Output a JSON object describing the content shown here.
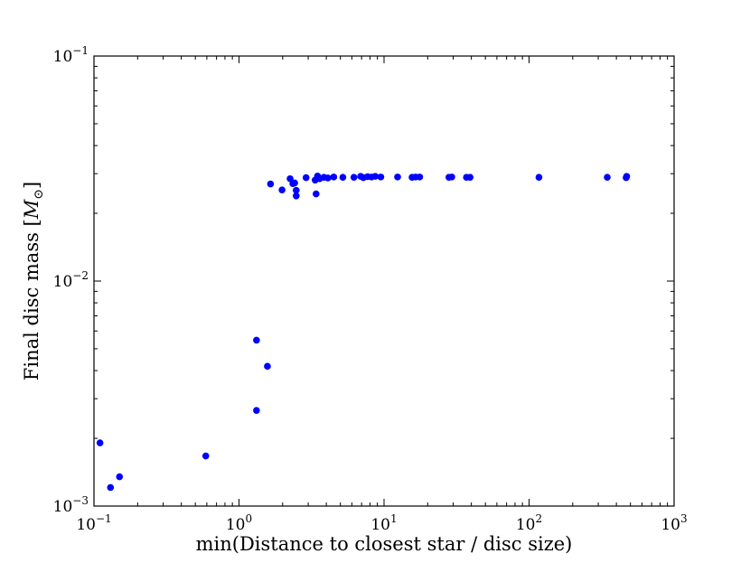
{
  "chart_data": {
    "type": "scatter",
    "title": "",
    "xlabel": "min(Distance to closest star / disc size)",
    "ylabel_text": "Final disc mass [",
    "ylabel_symbol": "M",
    "ylabel_subscript": "⊙",
    "ylabel_close": "]",
    "xscale": "log",
    "yscale": "log",
    "xlim": [
      0.1,
      1000
    ],
    "ylim": [
      0.001,
      0.1
    ],
    "x_ticks": [
      {
        "base": "10",
        "exp": "−1",
        "value": 0.1
      },
      {
        "base": "10",
        "exp": "0",
        "value": 1
      },
      {
        "base": "10",
        "exp": "1",
        "value": 10
      },
      {
        "base": "10",
        "exp": "2",
        "value": 100
      },
      {
        "base": "10",
        "exp": "3",
        "value": 1000
      }
    ],
    "y_ticks": [
      {
        "base": "10",
        "exp": "−3",
        "value": 0.001
      },
      {
        "base": "10",
        "exp": "−2",
        "value": 0.01
      },
      {
        "base": "10",
        "exp": "−1",
        "value": 0.1
      }
    ],
    "grid": false,
    "marker_color": "#0000ff",
    "points": [
      [
        0.11,
        0.00191
      ],
      [
        0.13,
        0.00121
      ],
      [
        0.15,
        0.00135
      ],
      [
        0.59,
        0.00167
      ],
      [
        1.32,
        0.00546
      ],
      [
        1.32,
        0.00266
      ],
      [
        1.57,
        0.00418
      ],
      [
        1.65,
        0.027
      ],
      [
        1.98,
        0.0254
      ],
      [
        2.25,
        0.0285
      ],
      [
        2.35,
        0.0271
      ],
      [
        2.42,
        0.0273
      ],
      [
        2.48,
        0.0253
      ],
      [
        2.48,
        0.0239
      ],
      [
        2.9,
        0.0288
      ],
      [
        3.35,
        0.0281
      ],
      [
        3.4,
        0.0244
      ],
      [
        3.48,
        0.0293
      ],
      [
        3.6,
        0.0285
      ],
      [
        3.85,
        0.0289
      ],
      [
        4.1,
        0.0287
      ],
      [
        4.5,
        0.029
      ],
      [
        5.2,
        0.0289
      ],
      [
        6.2,
        0.0289
      ],
      [
        6.9,
        0.0292
      ],
      [
        7.2,
        0.0288
      ],
      [
        7.7,
        0.0291
      ],
      [
        8.2,
        0.029
      ],
      [
        8.7,
        0.0292
      ],
      [
        9.5,
        0.029
      ],
      [
        12.4,
        0.029
      ],
      [
        15.6,
        0.0289
      ],
      [
        16.5,
        0.029
      ],
      [
        17.6,
        0.029
      ],
      [
        28.0,
        0.0289
      ],
      [
        29.3,
        0.029
      ],
      [
        37.0,
        0.0289
      ],
      [
        39.2,
        0.0289
      ],
      [
        117.0,
        0.0289
      ],
      [
        346.0,
        0.0289
      ],
      [
        467.0,
        0.0288
      ],
      [
        471.0,
        0.0292
      ]
    ]
  }
}
